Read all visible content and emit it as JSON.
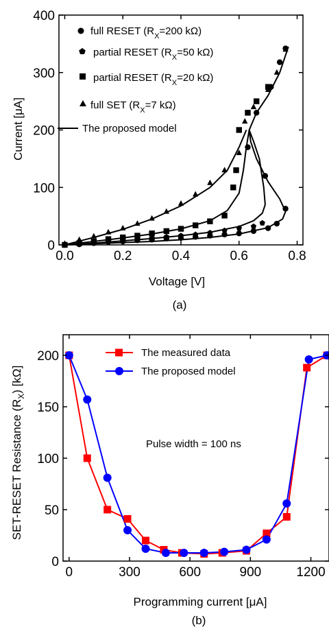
{
  "chart_data": [
    {
      "type": "scatter",
      "panel_label": "(a)",
      "xlabel": "Voltage [V]",
      "ylabel": "Current [μA]",
      "xlim": [
        -0.02,
        0.82
      ],
      "ylim": [
        0,
        400
      ],
      "xticks": [
        0.0,
        0.2,
        0.4,
        0.6,
        0.8
      ],
      "xtick_labels": [
        "0.0",
        "0.2",
        "0.4",
        "0.6",
        "0.8"
      ],
      "yticks": [
        0,
        100,
        200,
        300,
        400
      ],
      "ytick_labels": [
        "0",
        "100",
        "200",
        "300",
        "400"
      ],
      "grid": false,
      "legend_position": "top-left",
      "series": [
        {
          "name": "full RESET (RX=200 kΩ)",
          "legend_main": "full RESET (R",
          "legend_sub": "X",
          "legend_rest": "=200 kΩ)",
          "marker": "circle",
          "points": [
            [
              0.0,
              0
            ],
            [
              0.05,
              1
            ],
            [
              0.1,
              3
            ],
            [
              0.15,
              5
            ],
            [
              0.2,
              6
            ],
            [
              0.25,
              8
            ],
            [
              0.3,
              9
            ],
            [
              0.35,
              11
            ],
            [
              0.4,
              12
            ],
            [
              0.45,
              14
            ],
            [
              0.5,
              16
            ],
            [
              0.55,
              18
            ],
            [
              0.6,
              20
            ],
            [
              0.65,
              24
            ],
            [
              0.7,
              29
            ],
            [
              0.73,
              37
            ],
            [
              0.76,
              63
            ],
            [
              0.69,
              120
            ],
            [
              0.63,
              170
            ],
            [
              0.66,
              230
            ],
            [
              0.71,
              275
            ],
            [
              0.74,
              318
            ],
            [
              0.76,
              342
            ]
          ]
        },
        {
          "name": "partial RESET (RX=50 kΩ)",
          "legend_main": "partial RESET (R",
          "legend_sub": "X",
          "legend_rest": "=50 kΩ)",
          "marker": "pentagon",
          "points": [
            [
              0.0,
              0
            ],
            [
              0.05,
              2
            ],
            [
              0.1,
              4
            ],
            [
              0.15,
              6
            ],
            [
              0.2,
              8
            ],
            [
              0.25,
              10
            ],
            [
              0.3,
              12
            ],
            [
              0.35,
              14
            ],
            [
              0.4,
              16
            ],
            [
              0.45,
              18
            ],
            [
              0.5,
              21
            ],
            [
              0.55,
              25
            ],
            [
              0.6,
              29
            ],
            [
              0.65,
              32
            ],
            [
              0.68,
              38
            ]
          ]
        },
        {
          "name": "partial RESET (RX=20 kΩ)",
          "legend_main": "partial RESET (R",
          "legend_sub": "X",
          "legend_rest": "=20 kΩ)",
          "marker": "square",
          "points": [
            [
              0.0,
              0
            ],
            [
              0.05,
              3
            ],
            [
              0.1,
              6
            ],
            [
              0.15,
              10
            ],
            [
              0.2,
              13
            ],
            [
              0.25,
              16
            ],
            [
              0.3,
              20
            ],
            [
              0.35,
              24
            ],
            [
              0.4,
              28
            ],
            [
              0.45,
              34
            ],
            [
              0.5,
              41
            ],
            [
              0.55,
              51
            ],
            [
              0.58,
              100
            ],
            [
              0.59,
              130
            ],
            [
              0.6,
              200
            ],
            [
              0.63,
              230
            ],
            [
              0.66,
              250
            ],
            [
              0.7,
              275
            ]
          ]
        },
        {
          "name": "full SET (RX=7 kΩ)",
          "legend_main": "full SET (R",
          "legend_sub": "X",
          "legend_rest": "=7 kΩ)",
          "marker": "triangle",
          "points": [
            [
              0.0,
              2
            ],
            [
              0.05,
              9
            ],
            [
              0.1,
              15
            ],
            [
              0.15,
              22
            ],
            [
              0.2,
              29
            ],
            [
              0.25,
              37
            ],
            [
              0.3,
              46
            ],
            [
              0.35,
              58
            ],
            [
              0.4,
              72
            ],
            [
              0.45,
              88
            ],
            [
              0.5,
              108
            ],
            [
              0.55,
              130
            ],
            [
              0.6,
              160
            ],
            [
              0.62,
              215
            ],
            [
              0.65,
              240
            ],
            [
              0.7,
              270
            ],
            [
              0.73,
              300
            ],
            [
              0.76,
              340
            ]
          ]
        },
        {
          "name": "The proposed model",
          "legend_main": "The proposed model",
          "marker": "line",
          "curves": [
            [
              [
                0.0,
                0
              ],
              [
                0.1,
                2
              ],
              [
                0.2,
                4
              ],
              [
                0.3,
                6
              ],
              [
                0.4,
                9
              ],
              [
                0.5,
                13
              ],
              [
                0.6,
                19
              ],
              [
                0.7,
                30
              ],
              [
                0.75,
                45
              ],
              [
                0.76,
                58
              ],
              [
                0.74,
                80
              ],
              [
                0.7,
                110
              ],
              [
                0.66,
                150
              ],
              [
                0.64,
                180
              ],
              [
                0.635,
                200
              ],
              [
                0.66,
                230
              ],
              [
                0.7,
                260
              ],
              [
                0.74,
                300
              ],
              [
                0.77,
                345
              ]
            ],
            [
              [
                0.0,
                0
              ],
              [
                0.1,
                3
              ],
              [
                0.2,
                7
              ],
              [
                0.3,
                11
              ],
              [
                0.4,
                16
              ],
              [
                0.5,
                22
              ],
              [
                0.6,
                32
              ],
              [
                0.65,
                42
              ],
              [
                0.68,
                55
              ],
              [
                0.69,
                70
              ],
              [
                0.685,
                100
              ],
              [
                0.67,
                150
              ],
              [
                0.65,
                180
              ],
              [
                0.635,
                200
              ]
            ],
            [
              [
                0.0,
                0
              ],
              [
                0.1,
                6
              ],
              [
                0.2,
                12
              ],
              [
                0.3,
                19
              ],
              [
                0.4,
                28
              ],
              [
                0.5,
                42
              ],
              [
                0.56,
                60
              ],
              [
                0.6,
                90
              ],
              [
                0.615,
                130
              ],
              [
                0.625,
                170
              ],
              [
                0.635,
                200
              ]
            ],
            [
              [
                0.0,
                0
              ],
              [
                0.1,
                13
              ],
              [
                0.2,
                27
              ],
              [
                0.3,
                45
              ],
              [
                0.4,
                68
              ],
              [
                0.5,
                100
              ],
              [
                0.56,
                130
              ],
              [
                0.6,
                170
              ],
              [
                0.625,
                200
              ]
            ]
          ]
        }
      ]
    },
    {
      "type": "line",
      "panel_label": "(b)",
      "xlabel": "Programming current [μA]",
      "ylabel_main": "SET-RESET Resistance (R",
      "ylabel_sub": "X",
      "ylabel_rest": ") [kΩ]",
      "xlim": [
        -30,
        1290
      ],
      "ylim": [
        0,
        220
      ],
      "xticks": [
        0,
        300,
        600,
        900,
        1200
      ],
      "xtick_labels": [
        "0",
        "300",
        "600",
        "900",
        "1200"
      ],
      "yticks": [
        0,
        50,
        100,
        150,
        200
      ],
      "ytick_labels": [
        "0",
        "50",
        "100",
        "150",
        "200"
      ],
      "grid": false,
      "legend_position": "top-center",
      "annotation": "Pulse width = 100 ns",
      "colors": {
        "measured": "#ff0000",
        "model": "#0000ff"
      },
      "series": [
        {
          "name": "The measured data",
          "marker": "square",
          "color": "#ff0000",
          "x": [
            0,
            90,
            190,
            290,
            380,
            470,
            560,
            670,
            760,
            880,
            980,
            1080,
            1180,
            1280
          ],
          "values": [
            200,
            100,
            50,
            41,
            20,
            11,
            8,
            7,
            8,
            10,
            27,
            43,
            188,
            200
          ]
        },
        {
          "name": "The proposed model",
          "marker": "circle",
          "color": "#0000ff",
          "x": [
            0,
            90,
            190,
            290,
            380,
            480,
            570,
            670,
            770,
            880,
            980,
            1080,
            1190,
            1280
          ],
          "values": [
            200,
            157,
            81,
            30,
            12,
            8,
            8,
            8,
            9,
            11,
            21,
            56,
            196,
            200
          ]
        }
      ]
    }
  ]
}
